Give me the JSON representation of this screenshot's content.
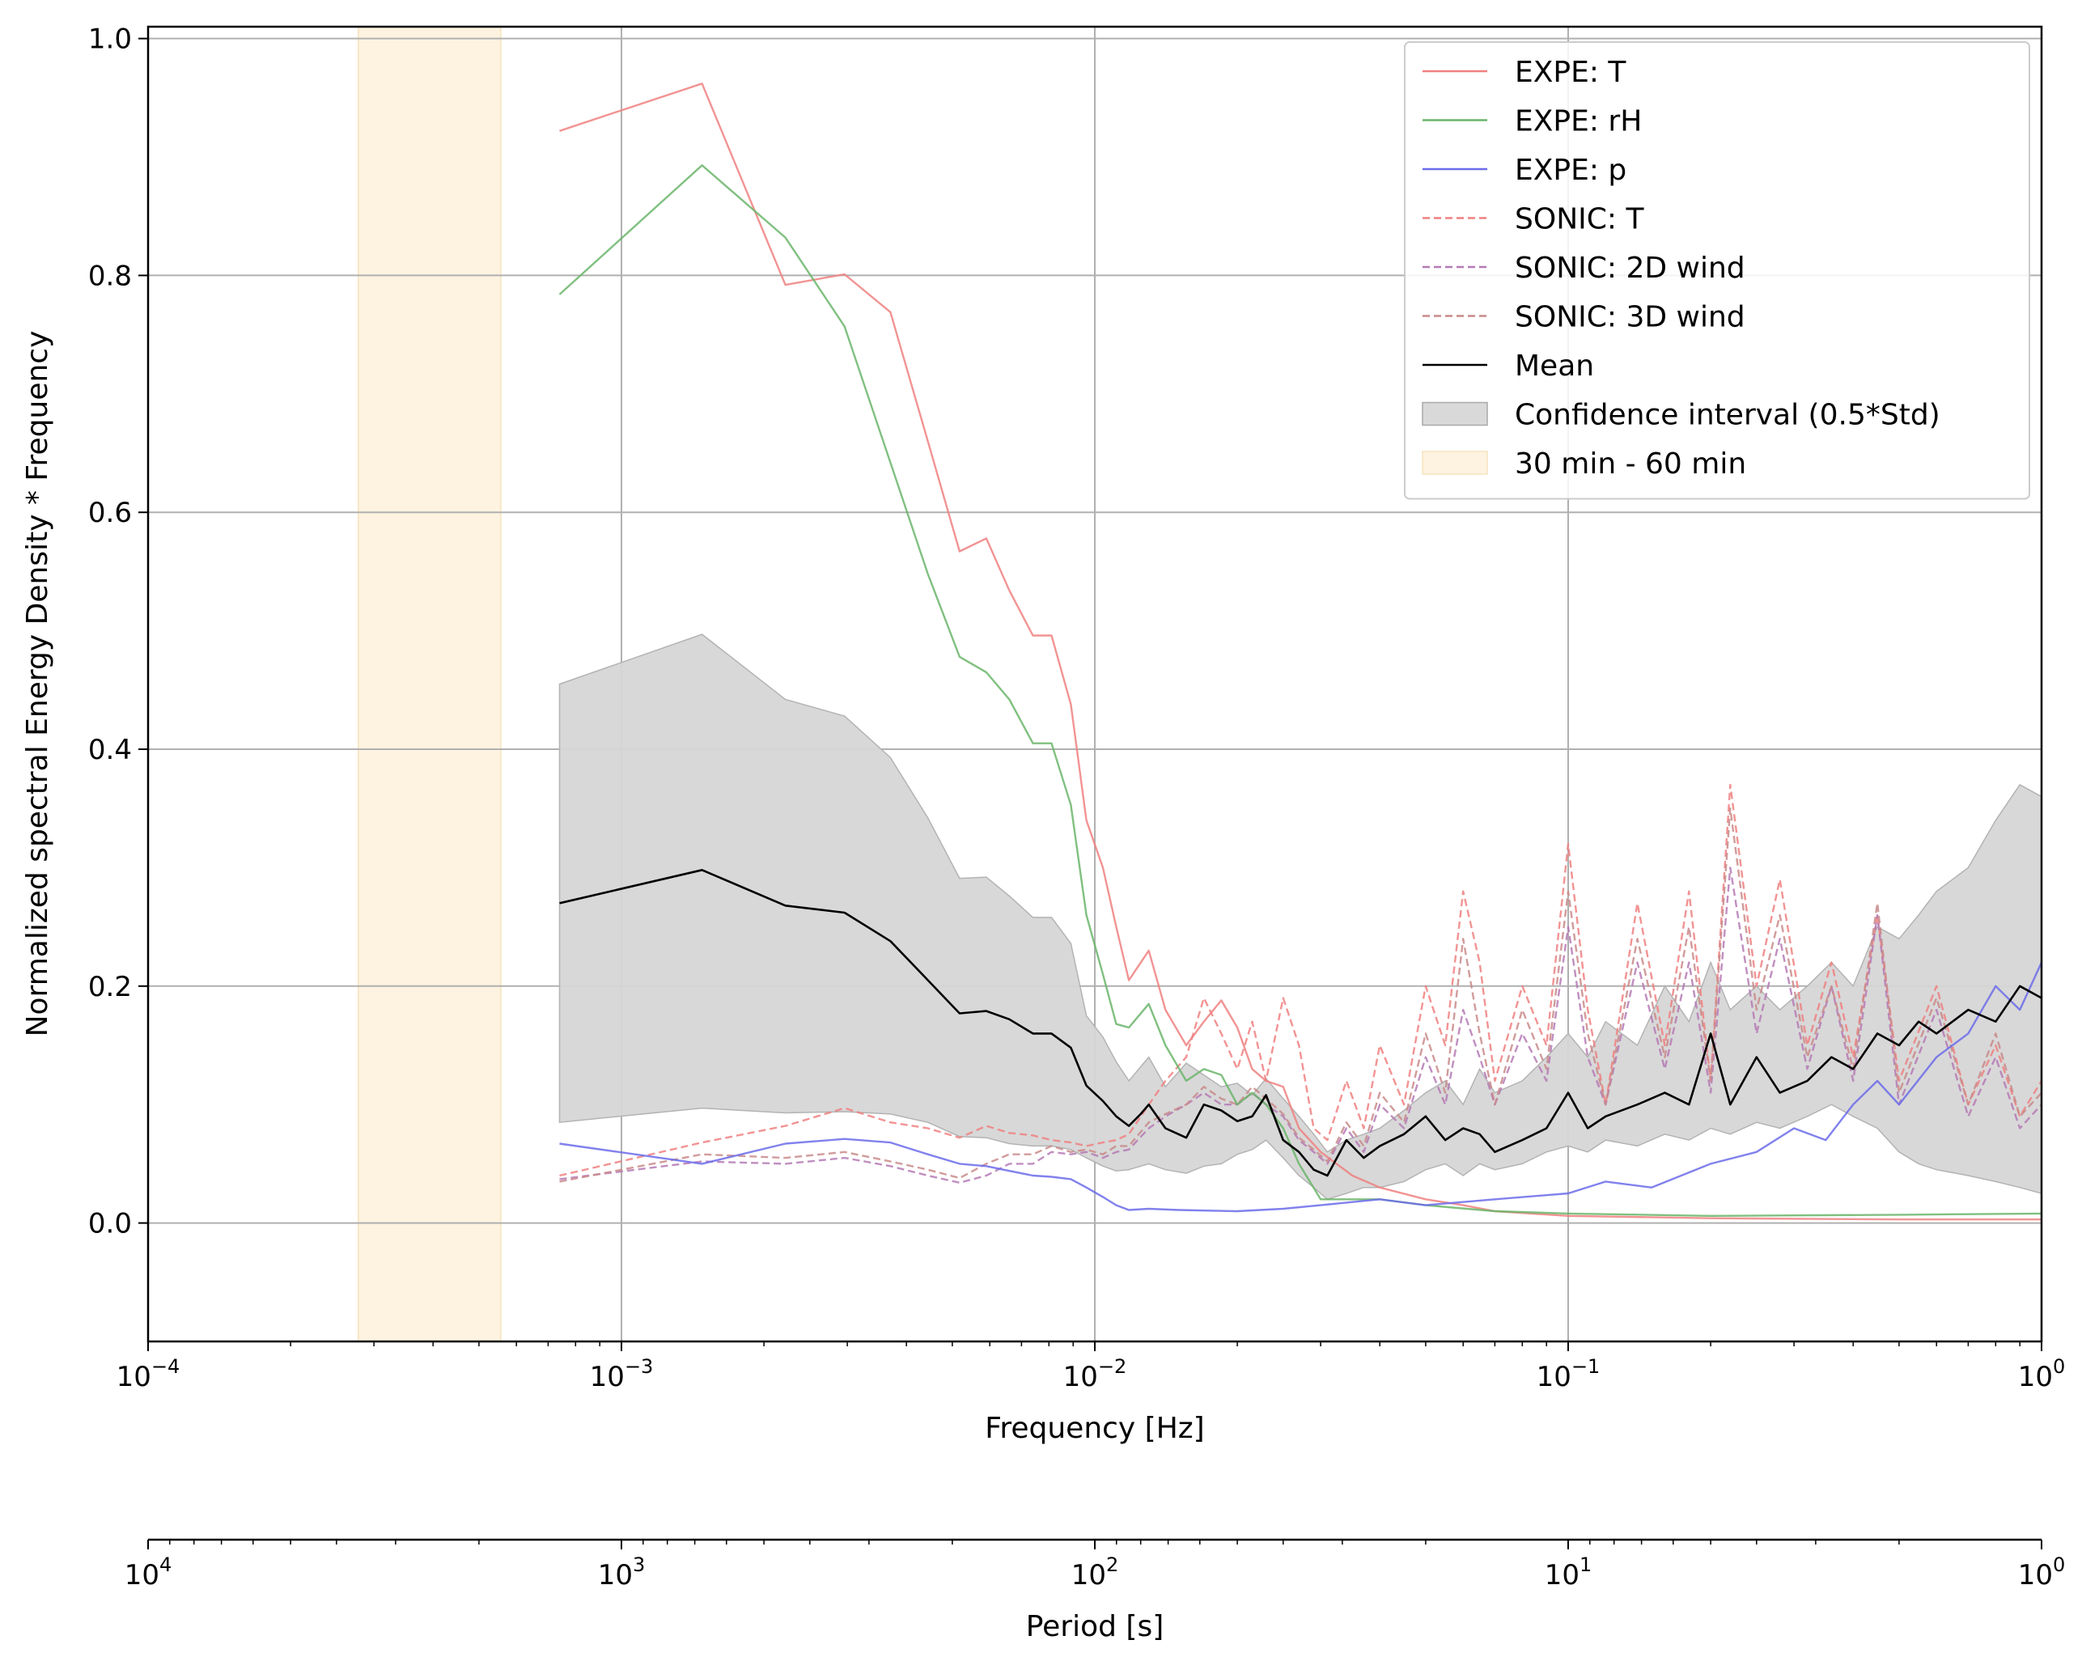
{
  "chart_data": {
    "type": "line",
    "xlabel": "Frequency [Hz]",
    "ylabel": "Normalized spectral Energy Density * Frequency",
    "x2label": "Period [s]",
    "xscale": "log",
    "x2scale": "log",
    "xlim": [
      0.0001,
      1
    ],
    "ylim": [
      -0.1,
      1.01
    ],
    "grid": true,
    "legend_position": "top-right",
    "x_ticks": [
      {
        "value": 0.0001,
        "base": "10",
        "exp": "−4"
      },
      {
        "value": 0.001,
        "base": "10",
        "exp": "−3"
      },
      {
        "value": 0.01,
        "base": "10",
        "exp": "−2"
      },
      {
        "value": 0.1,
        "base": "10",
        "exp": "−1"
      },
      {
        "value": 1,
        "base": "10",
        "exp": "0"
      }
    ],
    "x2_ticks": [
      {
        "value": 10000,
        "base": "10",
        "exp": "4"
      },
      {
        "value": 1000,
        "base": "10",
        "exp": "3"
      },
      {
        "value": 100,
        "base": "10",
        "exp": "2"
      },
      {
        "value": 10,
        "base": "10",
        "exp": "1"
      },
      {
        "value": 1,
        "base": "10",
        "exp": "0"
      }
    ],
    "y_ticks": [
      "0.0",
      "0.2",
      "0.4",
      "0.6",
      "0.8",
      "1.0"
    ],
    "shaded_band": {
      "name": "30 min - 60 min",
      "x_range": [
        0.000278,
        0.000556
      ],
      "color": "#fdf3e0"
    },
    "confidence_band": {
      "name": "Confidence interval (0.5*Std)",
      "x": [
        0.00074,
        0.00148,
        0.00222,
        0.00296,
        0.0037,
        0.00444,
        0.00518,
        0.0059,
        0.0066,
        0.0074,
        0.0081,
        0.0089,
        0.0096,
        0.0104,
        0.0111,
        0.0118,
        0.013,
        0.0141,
        0.0156,
        0.017,
        0.0185,
        0.02,
        0.0215,
        0.023,
        0.025,
        0.027,
        0.029,
        0.031,
        0.034,
        0.037,
        0.04,
        0.045,
        0.05,
        0.055,
        0.06,
        0.065,
        0.07,
        0.08,
        0.09,
        0.1,
        0.11,
        0.12,
        0.14,
        0.16,
        0.18,
        0.2,
        0.22,
        0.25,
        0.28,
        0.32,
        0.36,
        0.4,
        0.45,
        0.5,
        0.55,
        0.6,
        0.7,
        0.8,
        0.9,
        1.0
      ],
      "upper": [
        0.455,
        0.497,
        0.442,
        0.428,
        0.393,
        0.342,
        0.291,
        0.292,
        0.276,
        0.258,
        0.258,
        0.236,
        0.175,
        0.157,
        0.136,
        0.12,
        0.14,
        0.115,
        0.135,
        0.125,
        0.115,
        0.118,
        0.108,
        0.122,
        0.105,
        0.09,
        0.075,
        0.06,
        0.07,
        0.075,
        0.08,
        0.095,
        0.11,
        0.12,
        0.1,
        0.13,
        0.11,
        0.12,
        0.14,
        0.16,
        0.14,
        0.17,
        0.15,
        0.2,
        0.17,
        0.22,
        0.18,
        0.2,
        0.18,
        0.2,
        0.22,
        0.2,
        0.25,
        0.24,
        0.26,
        0.28,
        0.3,
        0.34,
        0.37,
        0.36
      ],
      "lower": [
        0.085,
        0.097,
        0.093,
        0.094,
        0.092,
        0.085,
        0.073,
        0.072,
        0.067,
        0.065,
        0.065,
        0.062,
        0.055,
        0.048,
        0.044,
        0.045,
        0.05,
        0.045,
        0.042,
        0.048,
        0.05,
        0.058,
        0.062,
        0.07,
        0.055,
        0.04,
        0.03,
        0.02,
        0.025,
        0.03,
        0.03,
        0.035,
        0.045,
        0.05,
        0.04,
        0.05,
        0.045,
        0.05,
        0.06,
        0.065,
        0.06,
        0.07,
        0.065,
        0.075,
        0.07,
        0.08,
        0.075,
        0.085,
        0.08,
        0.09,
        0.1,
        0.09,
        0.08,
        0.06,
        0.05,
        0.045,
        0.04,
        0.035,
        0.03,
        0.025
      ]
    },
    "series": [
      {
        "name": "EXPE: T",
        "color": "#f08080",
        "dash": "solid",
        "opacity": 0.85,
        "x": [
          0.00074,
          0.00148,
          0.00222,
          0.00296,
          0.0037,
          0.00444,
          0.00518,
          0.0059,
          0.0066,
          0.0074,
          0.0081,
          0.0089,
          0.0096,
          0.0104,
          0.0111,
          0.0118,
          0.013,
          0.0141,
          0.0156,
          0.017,
          0.0185,
          0.02,
          0.0215,
          0.023,
          0.025,
          0.027,
          0.03,
          0.035,
          0.04,
          0.05,
          0.06,
          0.07,
          0.1,
          0.2,
          0.5,
          1.0
        ],
        "y": [
          0.922,
          0.962,
          0.792,
          0.801,
          0.769,
          0.66,
          0.567,
          0.578,
          0.534,
          0.496,
          0.496,
          0.438,
          0.34,
          0.3,
          0.25,
          0.205,
          0.23,
          0.18,
          0.15,
          0.17,
          0.188,
          0.165,
          0.13,
          0.12,
          0.115,
          0.08,
          0.06,
          0.04,
          0.03,
          0.02,
          0.015,
          0.01,
          0.006,
          0.004,
          0.003,
          0.003
        ]
      },
      {
        "name": "EXPE: rH",
        "color": "#6ab56a",
        "dash": "solid",
        "opacity": 0.85,
        "x": [
          0.00074,
          0.00148,
          0.00222,
          0.00296,
          0.0037,
          0.00444,
          0.00518,
          0.0059,
          0.0066,
          0.0074,
          0.0081,
          0.0089,
          0.0096,
          0.0104,
          0.0111,
          0.0118,
          0.013,
          0.0141,
          0.0156,
          0.017,
          0.0185,
          0.02,
          0.0215,
          0.023,
          0.025,
          0.027,
          0.03,
          0.035,
          0.04,
          0.05,
          0.07,
          0.1,
          0.2,
          0.5,
          1.0
        ],
        "y": [
          0.784,
          0.893,
          0.832,
          0.757,
          0.642,
          0.548,
          0.478,
          0.465,
          0.442,
          0.405,
          0.405,
          0.353,
          0.26,
          0.21,
          0.168,
          0.165,
          0.185,
          0.15,
          0.12,
          0.13,
          0.125,
          0.1,
          0.11,
          0.1,
          0.08,
          0.05,
          0.02,
          0.02,
          0.02,
          0.015,
          0.01,
          0.008,
          0.006,
          0.007,
          0.008
        ]
      },
      {
        "name": "EXPE: p",
        "color": "#6b6bea",
        "dash": "solid",
        "opacity": 0.85,
        "x": [
          0.00074,
          0.00148,
          0.00222,
          0.00296,
          0.0037,
          0.00444,
          0.00518,
          0.0059,
          0.0066,
          0.0074,
          0.0081,
          0.0089,
          0.0096,
          0.0104,
          0.0111,
          0.0118,
          0.013,
          0.015,
          0.02,
          0.025,
          0.03,
          0.04,
          0.05,
          0.07,
          0.1,
          0.12,
          0.15,
          0.2,
          0.25,
          0.3,
          0.35,
          0.4,
          0.45,
          0.5,
          0.6,
          0.7,
          0.8,
          0.9,
          1.0
        ],
        "y": [
          0.067,
          0.05,
          0.067,
          0.071,
          0.068,
          0.058,
          0.05,
          0.048,
          0.044,
          0.04,
          0.039,
          0.037,
          0.03,
          0.022,
          0.015,
          0.011,
          0.012,
          0.011,
          0.01,
          0.012,
          0.015,
          0.02,
          0.015,
          0.02,
          0.025,
          0.035,
          0.03,
          0.05,
          0.06,
          0.08,
          0.07,
          0.1,
          0.12,
          0.1,
          0.14,
          0.16,
          0.2,
          0.18,
          0.22
        ]
      },
      {
        "name": "SONIC: T",
        "color": "#f08080",
        "dash": "dashed",
        "opacity": 0.85,
        "x": [
          0.00074,
          0.00148,
          0.00222,
          0.00296,
          0.0037,
          0.00444,
          0.00518,
          0.0059,
          0.0066,
          0.0074,
          0.0081,
          0.0089,
          0.0096,
          0.0104,
          0.0111,
          0.0118,
          0.013,
          0.0141,
          0.0156,
          0.017,
          0.0185,
          0.02,
          0.0215,
          0.023,
          0.025,
          0.027,
          0.029,
          0.031,
          0.034,
          0.037,
          0.04,
          0.045,
          0.05,
          0.055,
          0.06,
          0.065,
          0.07,
          0.08,
          0.09,
          0.1,
          0.11,
          0.12,
          0.14,
          0.16,
          0.18,
          0.2,
          0.22,
          0.25,
          0.28,
          0.32,
          0.36,
          0.4,
          0.45,
          0.5,
          0.6,
          0.7,
          0.8,
          0.9,
          1.0
        ],
        "y": [
          0.04,
          0.068,
          0.082,
          0.097,
          0.085,
          0.08,
          0.072,
          0.082,
          0.076,
          0.074,
          0.07,
          0.068,
          0.065,
          0.068,
          0.07,
          0.075,
          0.1,
          0.12,
          0.14,
          0.19,
          0.16,
          0.13,
          0.17,
          0.12,
          0.19,
          0.15,
          0.08,
          0.07,
          0.12,
          0.08,
          0.15,
          0.1,
          0.2,
          0.15,
          0.28,
          0.22,
          0.12,
          0.2,
          0.15,
          0.32,
          0.18,
          0.1,
          0.27,
          0.15,
          0.28,
          0.12,
          0.37,
          0.2,
          0.29,
          0.15,
          0.22,
          0.14,
          0.26,
          0.12,
          0.2,
          0.1,
          0.15,
          0.09,
          0.12
        ]
      },
      {
        "name": "SONIC: 2D wind",
        "color": "#b57ab5",
        "dash": "dashed",
        "opacity": 0.85,
        "x": [
          0.00074,
          0.00148,
          0.00222,
          0.00296,
          0.0037,
          0.00444,
          0.00518,
          0.0059,
          0.0066,
          0.0074,
          0.0081,
          0.0089,
          0.0096,
          0.0104,
          0.0111,
          0.0118,
          0.013,
          0.0141,
          0.0156,
          0.017,
          0.0185,
          0.02,
          0.0215,
          0.023,
          0.025,
          0.027,
          0.029,
          0.031,
          0.034,
          0.037,
          0.04,
          0.045,
          0.05,
          0.055,
          0.06,
          0.065,
          0.07,
          0.08,
          0.09,
          0.1,
          0.11,
          0.12,
          0.14,
          0.16,
          0.18,
          0.2,
          0.22,
          0.25,
          0.28,
          0.32,
          0.36,
          0.4,
          0.45,
          0.5,
          0.6,
          0.7,
          0.8,
          0.9,
          1.0
        ],
        "y": [
          0.037,
          0.052,
          0.05,
          0.055,
          0.048,
          0.04,
          0.034,
          0.04,
          0.05,
          0.05,
          0.06,
          0.058,
          0.06,
          0.055,
          0.06,
          0.062,
          0.08,
          0.09,
          0.1,
          0.11,
          0.1,
          0.1,
          0.11,
          0.1,
          0.09,
          0.07,
          0.06,
          0.05,
          0.08,
          0.06,
          0.1,
          0.08,
          0.14,
          0.1,
          0.18,
          0.14,
          0.1,
          0.16,
          0.12,
          0.25,
          0.14,
          0.1,
          0.22,
          0.13,
          0.22,
          0.11,
          0.3,
          0.16,
          0.24,
          0.13,
          0.2,
          0.12,
          0.26,
          0.1,
          0.18,
          0.09,
          0.14,
          0.08,
          0.1
        ]
      },
      {
        "name": "SONIC: 3D wind",
        "color": "#c98a8a",
        "dash": "dashed",
        "opacity": 0.85,
        "x": [
          0.00074,
          0.00148,
          0.00222,
          0.00296,
          0.0037,
          0.00444,
          0.00518,
          0.0059,
          0.0066,
          0.0074,
          0.0081,
          0.0089,
          0.0096,
          0.0104,
          0.0111,
          0.0118,
          0.013,
          0.0141,
          0.0156,
          0.017,
          0.0185,
          0.02,
          0.0215,
          0.023,
          0.025,
          0.027,
          0.029,
          0.031,
          0.034,
          0.037,
          0.04,
          0.045,
          0.05,
          0.055,
          0.06,
          0.065,
          0.07,
          0.08,
          0.09,
          0.1,
          0.11,
          0.12,
          0.14,
          0.16,
          0.18,
          0.2,
          0.22,
          0.25,
          0.28,
          0.32,
          0.36,
          0.4,
          0.45,
          0.5,
          0.6,
          0.7,
          0.8,
          0.9,
          1.0
        ],
        "y": [
          0.035,
          0.058,
          0.055,
          0.06,
          0.052,
          0.045,
          0.038,
          0.05,
          0.058,
          0.058,
          0.065,
          0.06,
          0.062,
          0.058,
          0.065,
          0.065,
          0.085,
          0.092,
          0.1,
          0.115,
          0.105,
          0.1,
          0.115,
          0.105,
          0.092,
          0.072,
          0.062,
          0.052,
          0.085,
          0.065,
          0.11,
          0.085,
          0.16,
          0.11,
          0.24,
          0.16,
          0.1,
          0.18,
          0.13,
          0.28,
          0.16,
          0.1,
          0.24,
          0.14,
          0.25,
          0.12,
          0.35,
          0.18,
          0.26,
          0.14,
          0.2,
          0.13,
          0.27,
          0.11,
          0.19,
          0.1,
          0.16,
          0.09,
          0.11
        ]
      },
      {
        "name": "Mean",
        "color": "#000000",
        "dash": "solid",
        "opacity": 1,
        "x": [
          0.00074,
          0.00148,
          0.00222,
          0.00296,
          0.0037,
          0.00444,
          0.00518,
          0.0059,
          0.0066,
          0.0074,
          0.0081,
          0.0089,
          0.0096,
          0.0104,
          0.0111,
          0.0118,
          0.0125,
          0.013,
          0.0141,
          0.0156,
          0.017,
          0.0185,
          0.02,
          0.0215,
          0.023,
          0.025,
          0.027,
          0.029,
          0.031,
          0.034,
          0.037,
          0.04,
          0.045,
          0.05,
          0.055,
          0.06,
          0.065,
          0.07,
          0.08,
          0.09,
          0.1,
          0.11,
          0.12,
          0.14,
          0.16,
          0.18,
          0.2,
          0.22,
          0.25,
          0.28,
          0.32,
          0.36,
          0.4,
          0.45,
          0.5,
          0.55,
          0.6,
          0.7,
          0.8,
          0.9,
          1.0
        ],
        "y": [
          0.27,
          0.298,
          0.268,
          0.262,
          0.238,
          0.205,
          0.177,
          0.179,
          0.172,
          0.16,
          0.16,
          0.148,
          0.116,
          0.103,
          0.09,
          0.082,
          0.092,
          0.1,
          0.08,
          0.072,
          0.1,
          0.095,
          0.086,
          0.09,
          0.108,
          0.07,
          0.06,
          0.045,
          0.04,
          0.07,
          0.055,
          0.065,
          0.075,
          0.09,
          0.07,
          0.08,
          0.075,
          0.06,
          0.07,
          0.08,
          0.11,
          0.08,
          0.09,
          0.1,
          0.11,
          0.1,
          0.16,
          0.1,
          0.14,
          0.11,
          0.12,
          0.14,
          0.13,
          0.16,
          0.15,
          0.17,
          0.16,
          0.18,
          0.17,
          0.2,
          0.19
        ]
      }
    ],
    "legend": [
      {
        "label": "EXPE: T",
        "kind": "line",
        "color": "#f08080",
        "dash": "solid"
      },
      {
        "label": "EXPE: rH",
        "kind": "line",
        "color": "#6ab56a",
        "dash": "solid"
      },
      {
        "label": "EXPE: p",
        "kind": "line",
        "color": "#6b6bea",
        "dash": "solid"
      },
      {
        "label": "SONIC: T",
        "kind": "line",
        "color": "#f08080",
        "dash": "dashed"
      },
      {
        "label": "SONIC: 2D wind",
        "kind": "line",
        "color": "#b57ab5",
        "dash": "dashed"
      },
      {
        "label": "SONIC: 3D wind",
        "kind": "line",
        "color": "#c98a8a",
        "dash": "dashed"
      },
      {
        "label": "Mean",
        "kind": "line",
        "color": "#000000",
        "dash": "solid"
      },
      {
        "label": "Confidence interval (0.5*Std)",
        "kind": "patch",
        "color": "#d9d9d9",
        "edge": "#a8a8a8"
      },
      {
        "label": "30 min - 60 min",
        "kind": "patch",
        "color": "#fdf3e0",
        "edge": "#f6e3bd"
      }
    ]
  }
}
